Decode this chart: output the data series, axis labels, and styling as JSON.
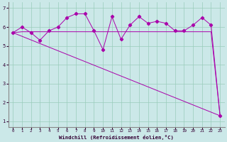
{
  "xlabel": "Windchill (Refroidissement éolien,°C)",
  "background_color": "#cbe8e8",
  "plot_bg_color": "#cbe8e8",
  "grid_color": "#99ccbb",
  "line_color": "#aa00aa",
  "xlim": [
    -0.5,
    23.5
  ],
  "ylim": [
    0.7,
    7.3
  ],
  "xticks": [
    0,
    1,
    2,
    3,
    4,
    5,
    6,
    7,
    8,
    9,
    10,
    11,
    12,
    13,
    14,
    15,
    16,
    17,
    18,
    19,
    20,
    21,
    22,
    23
  ],
  "yticks": [
    1,
    2,
    3,
    4,
    5,
    6,
    7
  ],
  "series1_x": [
    0,
    1,
    2,
    3,
    4,
    5,
    6,
    7,
    8,
    9,
    10,
    11,
    12,
    13,
    14,
    15,
    16,
    17,
    18,
    19,
    20,
    21,
    22,
    23
  ],
  "series1_y": [
    5.7,
    6.0,
    5.7,
    5.3,
    5.8,
    6.0,
    6.5,
    6.7,
    6.7,
    5.8,
    4.8,
    6.55,
    5.35,
    6.1,
    6.55,
    6.2,
    6.3,
    6.2,
    5.8,
    5.8,
    6.1,
    6.5,
    6.1,
    1.3
  ],
  "series2_x": [
    0,
    1,
    2,
    3,
    4,
    5,
    6,
    7,
    8,
    9,
    10,
    11,
    12,
    13,
    14,
    15,
    16,
    17,
    18,
    19,
    20,
    21,
    22,
    23
  ],
  "series2_y": [
    5.7,
    5.75,
    5.75,
    5.75,
    5.75,
    5.75,
    5.75,
    5.75,
    5.75,
    5.75,
    5.75,
    5.75,
    5.75,
    5.75,
    5.75,
    5.75,
    5.75,
    5.75,
    5.75,
    5.75,
    5.75,
    5.75,
    5.75,
    1.3
  ],
  "series3_x": [
    0,
    23
  ],
  "series3_y": [
    5.7,
    1.3
  ]
}
